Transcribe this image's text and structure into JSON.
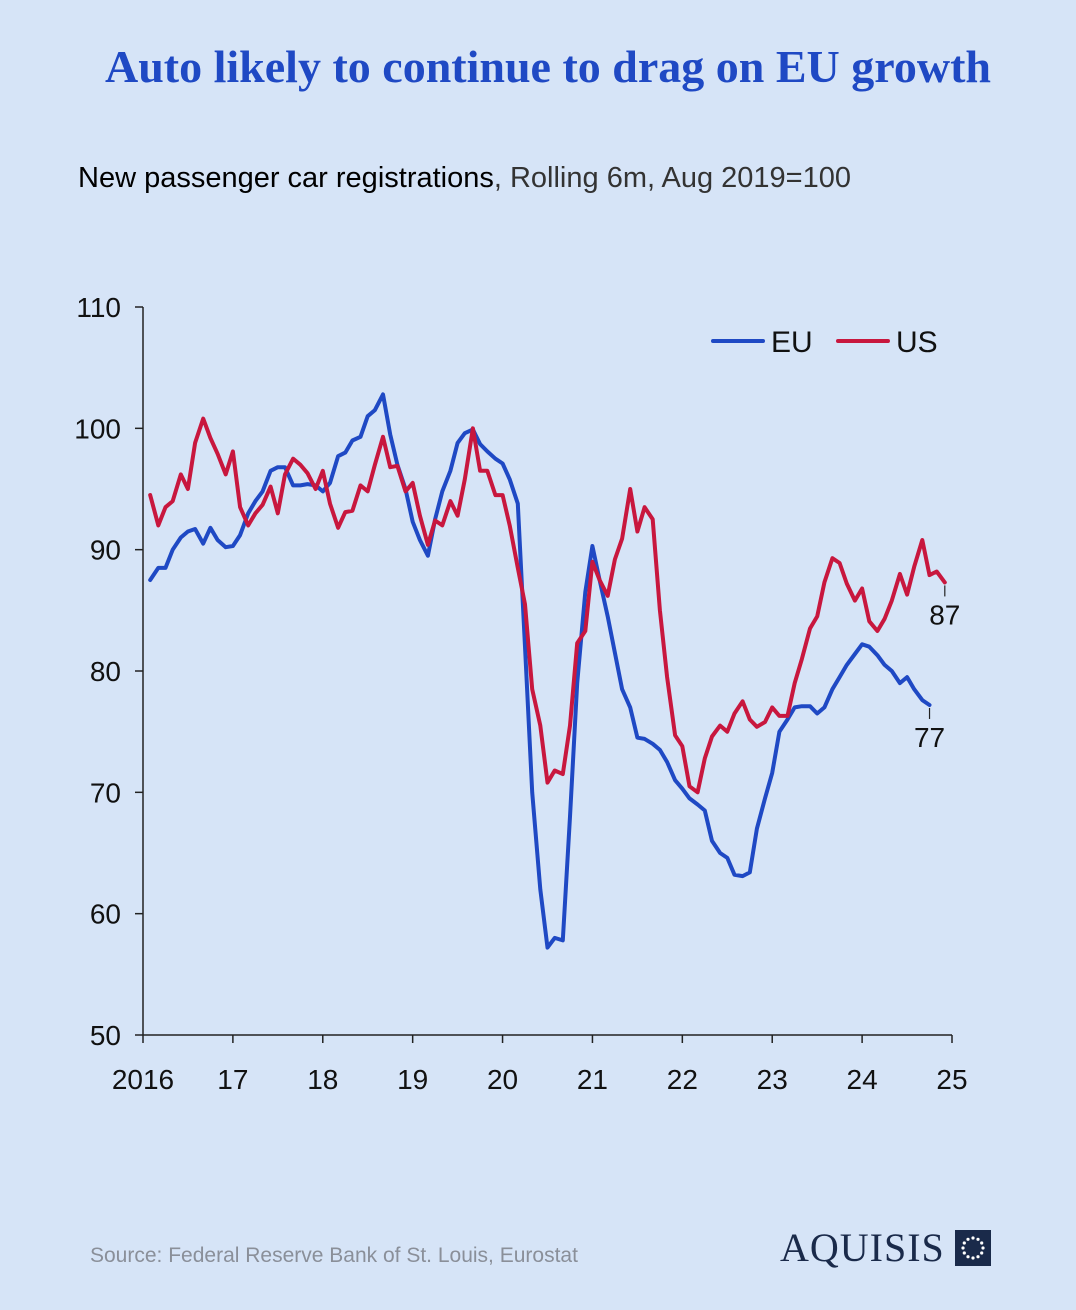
{
  "header": {
    "title": "Auto likely to continue to drag on EU growth",
    "subtitle_bold": "New passenger car registrations",
    "subtitle_rest": ", Rolling 6m, Aug 2019=100"
  },
  "footer": {
    "source": "Source: Federal Reserve Bank of St. Louis, Eurostat",
    "brand": "AQUISIS"
  },
  "colors": {
    "background": "#d6e4f7",
    "title": "#1f49c4",
    "eu": "#1f49c4",
    "us": "#c8173e"
  },
  "chart_data": {
    "type": "line",
    "title": "Auto likely to continue to drag on EU growth",
    "subtitle": "New passenger car registrations, Rolling 6m, Aug 2019=100",
    "xlabel": "",
    "ylabel": "",
    "xlim": [
      2016,
      2025
    ],
    "ylim": [
      50,
      110
    ],
    "x_ticks": [
      2016,
      2017,
      2018,
      2019,
      2020,
      2021,
      2022,
      2023,
      2024,
      2025
    ],
    "x_tick_labels": [
      "2016",
      "17",
      "18",
      "19",
      "20",
      "21",
      "22",
      "23",
      "24",
      "25"
    ],
    "y_ticks": [
      50,
      60,
      70,
      80,
      90,
      100,
      110
    ],
    "y_tick_labels": [
      "50",
      "60",
      "70",
      "80",
      "90",
      "100",
      "110"
    ],
    "legend": {
      "position": "top-right",
      "entries": [
        "EU",
        "US"
      ]
    },
    "grid": false,
    "series": [
      {
        "name": "EU",
        "color": "#1f49c4",
        "end_label": "77",
        "x": [
          2016.08,
          2016.17,
          2016.25,
          2016.33,
          2016.42,
          2016.5,
          2016.58,
          2016.67,
          2016.75,
          2016.83,
          2016.92,
          2017.0,
          2017.08,
          2017.17,
          2017.25,
          2017.33,
          2017.42,
          2017.5,
          2017.58,
          2017.67,
          2017.75,
          2017.83,
          2017.92,
          2018.0,
          2018.08,
          2018.17,
          2018.25,
          2018.33,
          2018.42,
          2018.5,
          2018.58,
          2018.67,
          2018.75,
          2018.83,
          2018.92,
          2019.0,
          2019.08,
          2019.17,
          2019.25,
          2019.33,
          2019.42,
          2019.5,
          2019.58,
          2019.67,
          2019.75,
          2019.83,
          2019.92,
          2020.0,
          2020.08,
          2020.17,
          2020.25,
          2020.33,
          2020.42,
          2020.5,
          2020.58,
          2020.67,
          2020.75,
          2020.83,
          2020.92,
          2021.0,
          2021.08,
          2021.17,
          2021.25,
          2021.33,
          2021.42,
          2021.5,
          2021.58,
          2021.67,
          2021.75,
          2021.83,
          2021.92,
          2022.0,
          2022.08,
          2022.17,
          2022.25,
          2022.33,
          2022.42,
          2022.5,
          2022.58,
          2022.67,
          2022.75,
          2022.83,
          2022.92,
          2023.0,
          2023.08,
          2023.17,
          2023.25,
          2023.33,
          2023.42,
          2023.5,
          2023.58,
          2023.67,
          2023.75,
          2023.83,
          2023.92,
          2024.0,
          2024.08,
          2024.17,
          2024.25,
          2024.33,
          2024.42,
          2024.5,
          2024.58,
          2024.67,
          2024.75
        ],
        "values": [
          87.5,
          88.5,
          88.5,
          90.0,
          91.0,
          91.5,
          91.7,
          90.5,
          91.8,
          90.8,
          90.2,
          90.3,
          91.2,
          93.0,
          94.0,
          94.8,
          96.5,
          96.8,
          96.8,
          95.3,
          95.3,
          95.4,
          95.3,
          94.8,
          95.5,
          97.7,
          98.0,
          99.0,
          99.3,
          101.0,
          101.5,
          102.8,
          99.5,
          97.0,
          95.0,
          92.3,
          90.8,
          89.5,
          92.5,
          94.8,
          96.5,
          98.8,
          99.6,
          99.9,
          98.7,
          98.1,
          97.5,
          97.1,
          95.8,
          93.8,
          82.0,
          70.0,
          62.0,
          57.2,
          58.0,
          57.8,
          68.0,
          79.0,
          86.5,
          90.3,
          87.5,
          84.5,
          81.5,
          78.5,
          77.0,
          74.5,
          74.4,
          74.0,
          73.5,
          72.5,
          71.0,
          70.3,
          69.5,
          69.0,
          68.5,
          66.0,
          65.0,
          64.6,
          63.2,
          63.1,
          63.4,
          67.0,
          69.5,
          71.6,
          75.0,
          76.0,
          77.0,
          77.1,
          77.1,
          76.5,
          77.0,
          78.5,
          79.5,
          80.5,
          81.4,
          82.2,
          82.0,
          81.3,
          80.5,
          80.0,
          79.0,
          79.5,
          78.5,
          77.6,
          77.2
        ]
      },
      {
        "name": "US",
        "color": "#c8173e",
        "end_label": "87",
        "x": [
          2016.08,
          2016.17,
          2016.25,
          2016.33,
          2016.42,
          2016.5,
          2016.58,
          2016.67,
          2016.75,
          2016.83,
          2016.92,
          2017.0,
          2017.08,
          2017.17,
          2017.25,
          2017.33,
          2017.42,
          2017.5,
          2017.58,
          2017.67,
          2017.75,
          2017.83,
          2017.92,
          2018.0,
          2018.08,
          2018.17,
          2018.25,
          2018.33,
          2018.42,
          2018.5,
          2018.58,
          2018.67,
          2018.75,
          2018.83,
          2018.92,
          2019.0,
          2019.08,
          2019.17,
          2019.25,
          2019.33,
          2019.42,
          2019.5,
          2019.58,
          2019.67,
          2019.75,
          2019.83,
          2019.92,
          2020.0,
          2020.08,
          2020.17,
          2020.25,
          2020.33,
          2020.42,
          2020.5,
          2020.58,
          2020.67,
          2020.75,
          2020.83,
          2020.92,
          2021.0,
          2021.08,
          2021.17,
          2021.25,
          2021.33,
          2021.42,
          2021.5,
          2021.58,
          2021.67,
          2021.75,
          2021.83,
          2021.92,
          2022.0,
          2022.08,
          2022.17,
          2022.25,
          2022.33,
          2022.42,
          2022.5,
          2022.58,
          2022.67,
          2022.75,
          2022.83,
          2022.92,
          2023.0,
          2023.08,
          2023.17,
          2023.25,
          2023.33,
          2023.42,
          2023.5,
          2023.58,
          2023.67,
          2023.75,
          2023.83,
          2023.92,
          2024.0,
          2024.08,
          2024.17,
          2024.25,
          2024.33,
          2024.42,
          2024.5,
          2024.58,
          2024.67,
          2024.75,
          2024.83,
          2024.92
        ],
        "values": [
          94.5,
          92.0,
          93.5,
          94.0,
          96.2,
          95.0,
          98.8,
          100.8,
          99.2,
          97.9,
          96.2,
          98.1,
          93.5,
          92.0,
          93.0,
          93.7,
          95.2,
          93.0,
          96.2,
          97.5,
          97.0,
          96.3,
          95.0,
          96.5,
          93.8,
          91.8,
          93.1,
          93.2,
          95.3,
          94.8,
          97.0,
          99.3,
          96.8,
          96.9,
          94.8,
          95.5,
          92.8,
          90.4,
          92.4,
          92.0,
          94.0,
          92.8,
          95.8,
          100.0,
          96.5,
          96.5,
          94.5,
          94.5,
          92.0,
          88.5,
          85.5,
          78.5,
          75.5,
          70.8,
          71.8,
          71.5,
          75.5,
          82.3,
          83.3,
          89.0,
          87.5,
          86.2,
          89.2,
          90.9,
          95.0,
          91.5,
          93.5,
          92.5,
          85.0,
          79.5,
          74.7,
          73.8,
          70.5,
          70.0,
          72.8,
          74.6,
          75.5,
          75.0,
          76.5,
          77.5,
          76.0,
          75.4,
          75.8,
          77.0,
          76.3,
          76.3,
          79.0,
          81.0,
          83.5,
          84.5,
          87.3,
          89.3,
          88.9,
          87.2,
          85.8,
          86.8,
          84.1,
          83.3,
          84.3,
          85.8,
          88.0,
          86.3,
          88.6,
          90.8,
          87.9,
          88.2,
          87.3
        ]
      }
    ]
  }
}
